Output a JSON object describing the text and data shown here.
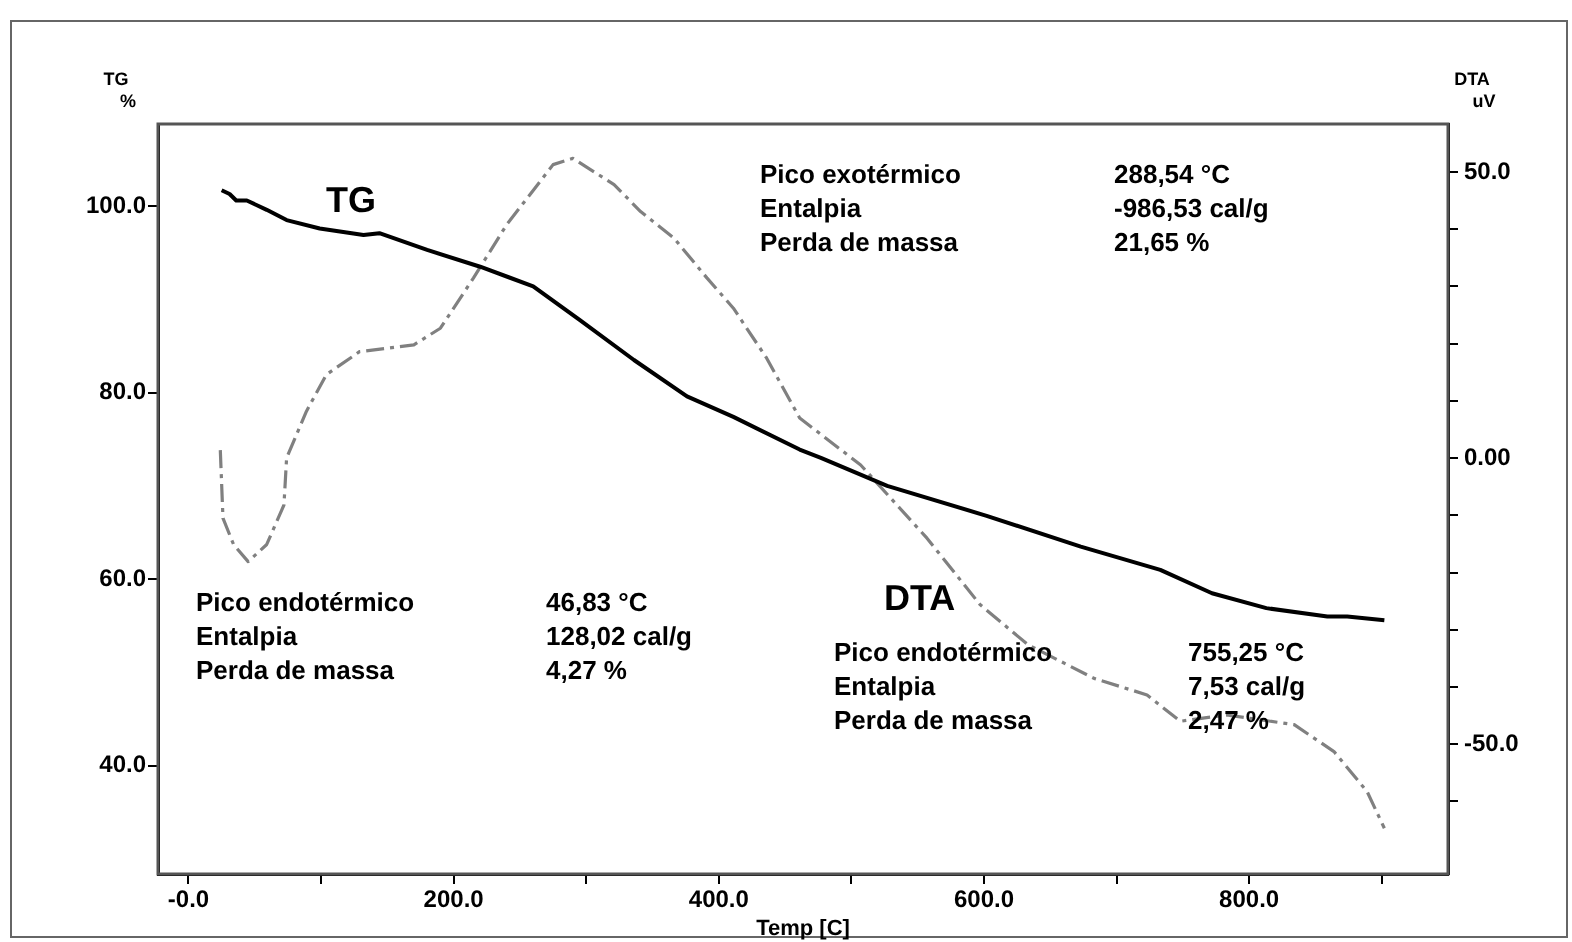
{
  "chart_data": {
    "type": "line",
    "xlabel": "Temp [C]",
    "ylabel": "TG\n%",
    "y2label": "DTA\nuV",
    "xlim": [
      -23,
      950
    ],
    "xticks": [
      {
        "value": 0,
        "label": "-0.0"
      },
      {
        "value": 100,
        "label": null
      },
      {
        "value": 200,
        "label": "200.0"
      },
      {
        "value": 300,
        "label": null
      },
      {
        "value": 400,
        "label": "400.0"
      },
      {
        "value": 500,
        "label": null
      },
      {
        "value": 600,
        "label": "600.0"
      },
      {
        "value": 700,
        "label": null
      },
      {
        "value": 800,
        "label": "800.0"
      },
      {
        "value": 900,
        "label": null
      }
    ],
    "ylim": [
      28.4,
      108.8
    ],
    "yticks": [
      {
        "value": 40,
        "label": "40.0"
      },
      {
        "value": 60,
        "label": "60.0"
      },
      {
        "value": 80,
        "label": "80.0"
      },
      {
        "value": 100,
        "label": "100.0"
      }
    ],
    "y2lim": [
      -72.7,
      58.4
    ],
    "y2ticks": [
      {
        "value": -60,
        "label": null
      },
      {
        "value": -50,
        "label": "-50.0"
      },
      {
        "value": -40,
        "label": null
      },
      {
        "value": -30,
        "label": null
      },
      {
        "value": -20,
        "label": null
      },
      {
        "value": -10,
        "label": null
      },
      {
        "value": 0,
        "label": "0.00"
      },
      {
        "value": 10,
        "label": null
      },
      {
        "value": 20,
        "label": null
      },
      {
        "value": 30,
        "label": null
      },
      {
        "value": 40,
        "label": null
      },
      {
        "value": 50,
        "label": "50.0"
      }
    ],
    "grid": false,
    "legend": false,
    "series": [
      {
        "name": "TG",
        "color": "#000000",
        "line_style": "solid",
        "x": [
          25,
          31,
          36,
          44,
          59,
          74,
          99,
          132,
          144,
          180,
          220,
          260,
          295,
          336,
          376,
          411,
          461,
          477,
          527,
          602,
          673,
          733,
          772,
          813,
          859,
          874,
          902
        ],
        "values": [
          101.7,
          101.3,
          100.6,
          100.6,
          99.6,
          98.5,
          97.6,
          96.9,
          97.1,
          95.3,
          93.5,
          91.4,
          87.8,
          83.5,
          79.6,
          77.4,
          73.9,
          73.0,
          70.0,
          66.8,
          63.5,
          61.0,
          58.5,
          56.9,
          56.0,
          56.0,
          55.6
        ]
      },
      {
        "name": "DTA",
        "color": "#808080",
        "line_style": "dashed",
        "axis": "y2",
        "x": [
          24,
          26,
          34,
          45,
          59,
          72,
          74,
          89,
          104,
          129,
          170,
          190,
          215,
          240,
          275,
          290,
          321,
          341,
          366,
          391,
          411,
          436,
          461,
          507,
          557,
          597,
          633,
          683,
          723,
          748,
          783,
          834,
          864,
          889,
          902
        ],
        "values": [
          1.4,
          -10.5,
          -15.1,
          -18.1,
          -15.1,
          -8.2,
          0,
          8.2,
          14.6,
          18.6,
          19.8,
          22.7,
          31.5,
          40.8,
          51.3,
          52.4,
          47.8,
          43.1,
          38.5,
          31.5,
          26.2,
          17.5,
          7.0,
          -1.2,
          -14,
          -25.6,
          -32.6,
          -38.5,
          -41.4,
          -46.0,
          -44.9,
          -46.6,
          -51.3,
          -58.3,
          -64.7
        ]
      }
    ],
    "annotations": [
      "Pico exotérmico",
      "288,54 °C",
      "Entalpia",
      "-986,53 cal/g",
      "Perda de massa",
      "21,65 %",
      "Pico endotérmico",
      "46,83 °C",
      "Entalpia",
      "128,02 cal/g",
      "Perda de massa",
      "4,27 %",
      "Pico endotérmico",
      "755,25 °C",
      "Entalpia",
      "7,53 cal/g",
      "Perda de massa",
      "2,47 %"
    ]
  }
}
